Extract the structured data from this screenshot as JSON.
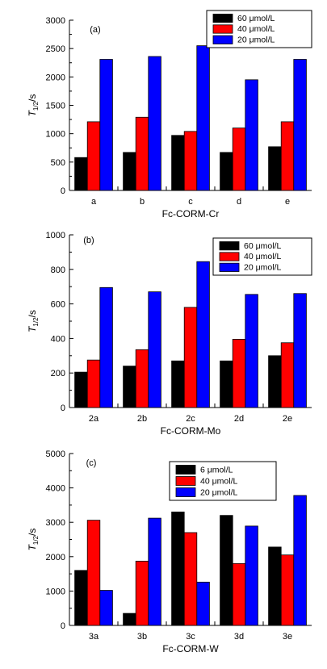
{
  "chart_data": [
    {
      "type": "bar",
      "panel_label": "(a)",
      "categories": [
        "a",
        "b",
        "c",
        "d",
        "e"
      ],
      "xlabel": "Fc-CORM-Cr",
      "ylabel": "T1/2/s",
      "ylabel_parts": {
        "symbol": "T",
        "subscript": "1/2",
        "unit": "/s"
      },
      "ylim": [
        0,
        3000
      ],
      "yticks": [
        0,
        500,
        1000,
        1500,
        2000,
        2500,
        3000
      ],
      "legend_position": "top-right",
      "series": [
        {
          "name": "60 μmol/L",
          "color": "#000000",
          "values": [
            580,
            670,
            970,
            670,
            770
          ]
        },
        {
          "name": "40 μmol/L",
          "color": "#ff0000",
          "values": [
            1210,
            1290,
            1040,
            1100,
            1210
          ]
        },
        {
          "name": "20 μmol/L",
          "color": "#0000ff",
          "values": [
            2310,
            2360,
            2550,
            1950,
            2310
          ]
        }
      ]
    },
    {
      "type": "bar",
      "panel_label": "(b)",
      "categories": [
        "2a",
        "2b",
        "2c",
        "2d",
        "2e"
      ],
      "xlabel": "Fc-CORM-Mo",
      "ylabel": "T1/2/s",
      "ylabel_parts": {
        "symbol": "T",
        "subscript": "1/2",
        "unit": "/s"
      },
      "ylim": [
        0,
        1000
      ],
      "yticks": [
        0,
        200,
        400,
        600,
        800,
        1000
      ],
      "legend_position": "top-right",
      "series": [
        {
          "name": "60 μmol/L",
          "color": "#000000",
          "values": [
            205,
            240,
            270,
            270,
            300
          ]
        },
        {
          "name": "40 μmol/L",
          "color": "#ff0000",
          "values": [
            275,
            335,
            580,
            395,
            375
          ]
        },
        {
          "name": "20 μmol/L",
          "color": "#0000ff",
          "values": [
            695,
            670,
            845,
            655,
            660
          ]
        }
      ]
    },
    {
      "type": "bar",
      "panel_label": "(c)",
      "categories": [
        "3a",
        "3b",
        "3c",
        "3d",
        "3e"
      ],
      "xlabel": "Fc-CORM-W",
      "ylabel": "T1/2/s",
      "ylabel_parts": {
        "symbol": "T",
        "subscript": "1/2",
        "unit": "/s"
      },
      "ylim": [
        0,
        5000
      ],
      "yticks": [
        0,
        1000,
        2000,
        3000,
        4000,
        5000
      ],
      "legend_position": "top-right",
      "series": [
        {
          "name": "6  μmol/L",
          "color": "#000000",
          "values": [
            1600,
            350,
            3300,
            3200,
            2280
          ]
        },
        {
          "name": "40 μmol/L",
          "color": "#ff0000",
          "values": [
            3060,
            1870,
            2700,
            1800,
            2050
          ]
        },
        {
          "name": "20 μmol/L",
          "color": "#0000ff",
          "values": [
            1020,
            3120,
            1260,
            2890,
            3780
          ]
        }
      ]
    }
  ]
}
